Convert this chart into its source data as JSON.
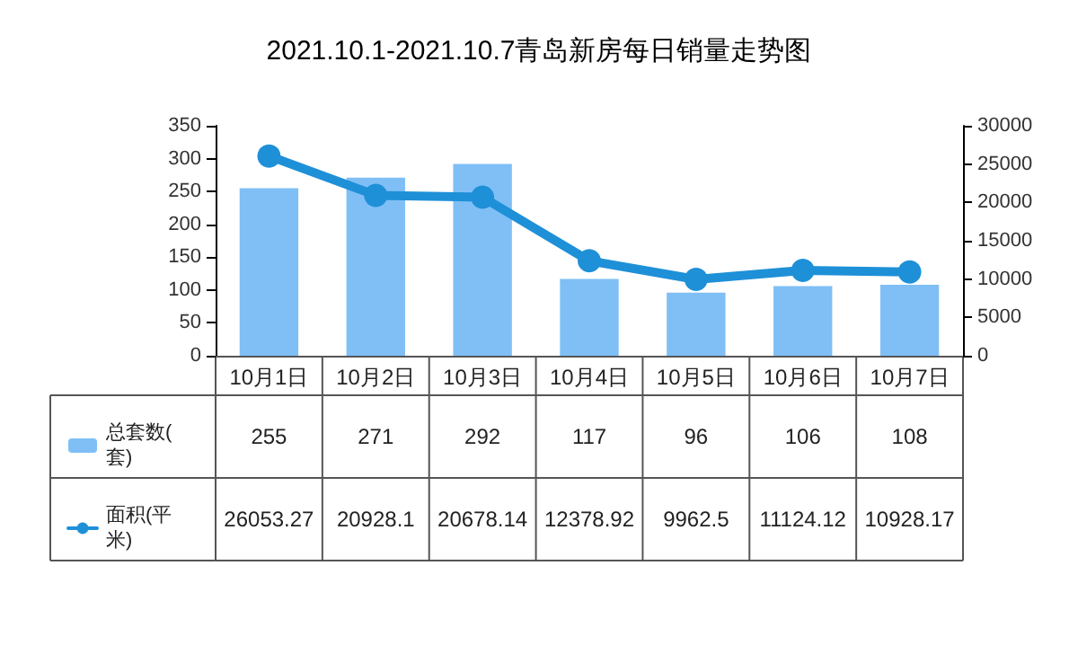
{
  "chart_data": {
    "type": "bar",
    "title": "2021.10.1-2021.10.7青岛新房每日销量走势图",
    "categories": [
      "10月1日",
      "10月2日",
      "10月3日",
      "10月4日",
      "10月5日",
      "10月6日",
      "10月7日"
    ],
    "series": [
      {
        "name": "总套数(套)",
        "color": "#7fbff5",
        "values": [
          255,
          271,
          292,
          117,
          96,
          106,
          108
        ]
      },
      {
        "name": "面积(平米)",
        "type": "line",
        "axis": "y2",
        "color": "#1e90d8",
        "values": [
          26053.27,
          20928.1,
          20678.14,
          12378.92,
          9962.5,
          11124.12,
          10928.17
        ]
      }
    ],
    "ylim": [
      0,
      350
    ],
    "yticks": [
      0,
      50,
      100,
      150,
      200,
      250,
      300,
      350
    ],
    "y2lim": [
      0,
      30000
    ],
    "y2ticks": [
      0,
      5000,
      10000,
      15000,
      20000,
      25000,
      30000
    ],
    "grid": false,
    "legend": "bottom left",
    "marker": "circle",
    "line_style": "solid",
    "data_labels": true
  }
}
